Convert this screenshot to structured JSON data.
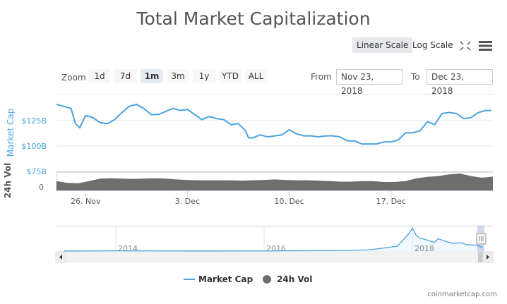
{
  "chart_data": {
    "type": "line",
    "title": "Total Market Capitalization",
    "scale_buttons": {
      "linear": "Linear Scale",
      "log": "Log Scale",
      "active": "linear"
    },
    "range_selector": {
      "label": "Zoom",
      "buttons": [
        "1d",
        "7d",
        "1m",
        "3m",
        "1y",
        "YTD",
        "ALL"
      ],
      "selected": "1m",
      "from_label": "From",
      "from": "Nov 23, 2018",
      "to_label": "To",
      "to": "Dec 23, 2018"
    },
    "yaxis_market_cap": {
      "label": "Market Cap",
      "ticks": [
        "$75B",
        "$100B",
        "$125B"
      ],
      "tick_values": [
        75,
        100,
        125
      ],
      "range": [
        75,
        150
      ],
      "color": "#4aa3df"
    },
    "yaxis_volume": {
      "label": "24h Vol",
      "ticks": [
        "0"
      ]
    },
    "xaxis": {
      "ticks": [
        "26. Nov",
        "3. Dec",
        "10. Dec",
        "17. Dec"
      ],
      "tick_days": [
        26,
        33,
        40,
        47
      ],
      "range_days": [
        24,
        54
      ]
    },
    "series": [
      {
        "name": "Market Cap",
        "color": "#4aa3df",
        "unit": "$B",
        "x_days": [
          24,
          24.5,
          25,
          25.3,
          25.6,
          26,
          26.5,
          27,
          27.5,
          28,
          28.5,
          29,
          29.5,
          30,
          30.5,
          31,
          31.5,
          32,
          32.5,
          33,
          33.5,
          34,
          34.5,
          35,
          35.5,
          36,
          36.5,
          37,
          37.2,
          37.5,
          38,
          38.5,
          39,
          39.5,
          40,
          40.5,
          41,
          41.5,
          42,
          42.5,
          43,
          43.5,
          44,
          44.5,
          45,
          45.5,
          46,
          46.5,
          47,
          47.5,
          48,
          48.5,
          49,
          49.5,
          50,
          50.5,
          51,
          51.5,
          52,
          52.5,
          53,
          53.5,
          53.9
        ],
        "values": [
          141,
          139,
          137,
          122,
          118,
          130,
          128,
          123,
          122,
          126,
          133,
          139,
          141,
          137,
          131,
          131,
          134,
          137,
          135,
          136,
          131,
          126,
          129,
          127,
          126,
          121,
          122,
          115,
          108,
          108,
          111,
          109,
          110,
          111,
          116,
          112,
          110,
          110,
          109,
          110,
          110,
          109,
          105,
          105,
          102,
          102,
          102,
          104,
          104,
          106,
          113,
          113,
          115,
          124,
          121,
          132,
          133,
          132,
          127,
          128,
          133,
          135,
          135
        ]
      },
      {
        "name": "24h Vol",
        "color": "#6e6e6e",
        "relative_values": [
          0.55,
          0.45,
          0.42,
          0.55,
          0.7,
          0.72,
          0.7,
          0.68,
          0.7,
          0.72,
          0.7,
          0.65,
          0.62,
          0.6,
          0.6,
          0.6,
          0.6,
          0.58,
          0.6,
          0.62,
          0.65,
          0.62,
          0.6,
          0.6,
          0.58,
          0.55,
          0.52,
          0.52,
          0.55,
          0.55,
          0.5,
          0.5,
          0.55,
          0.72,
          0.8,
          0.85,
          0.95,
          1.0,
          0.85,
          0.75,
          0.82
        ]
      }
    ],
    "legend": {
      "position": "bottom",
      "items": [
        "Market Cap",
        "24h Vol"
      ]
    },
    "navigator": {
      "ticks": [
        "2014",
        "2016",
        "2018"
      ],
      "tick_years": [
        2014,
        2016,
        2018
      ],
      "x_years": [
        2013.3,
        2014,
        2015,
        2016,
        2017,
        2017.4,
        2017.6,
        2017.8,
        2017.95,
        2018.0,
        2018.05,
        2018.1,
        2018.2,
        2018.3,
        2018.35,
        2018.45,
        2018.55,
        2018.65,
        2018.75,
        2018.85,
        2018.95
      ],
      "values": [
        1.5,
        10,
        5,
        7,
        18,
        40,
        100,
        170,
        600,
        800,
        560,
        450,
        380,
        300,
        430,
        330,
        270,
        290,
        215,
        210,
        130
      ]
    },
    "grid": true
  },
  "credit": "coinmarketcap.com"
}
